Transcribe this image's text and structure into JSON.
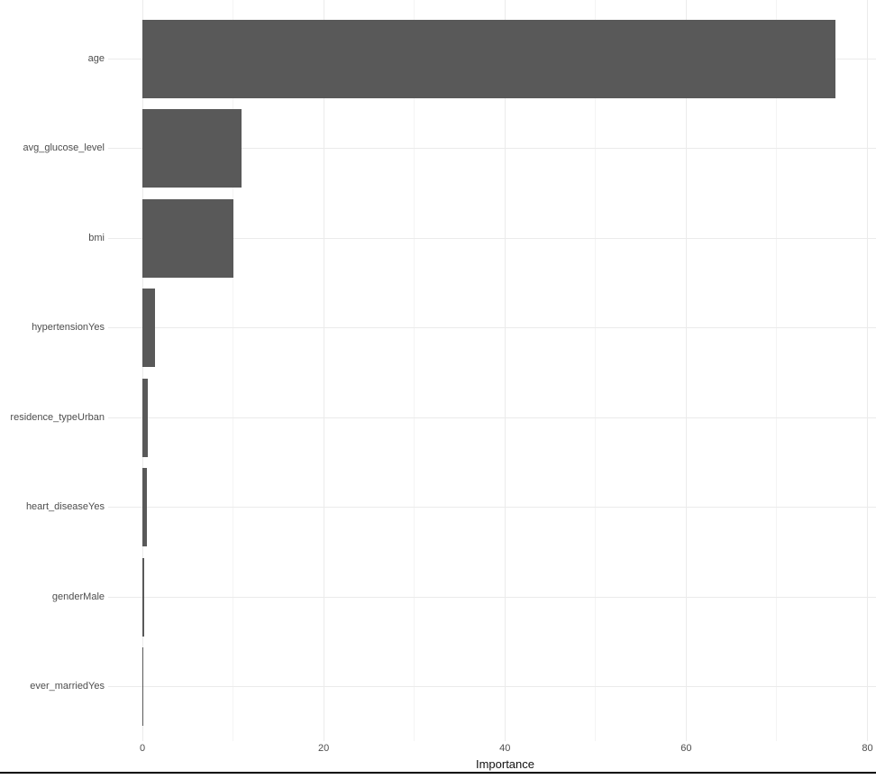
{
  "chart_data": {
    "type": "bar",
    "orientation": "horizontal",
    "title": "",
    "xlabel": "Importance",
    "ylabel": "",
    "categories": [
      "age",
      "avg_glucose_level",
      "bmi",
      "hypertensionYes",
      "residence_typeUrban",
      "heart_diseaseYes",
      "genderMale",
      "ever_marriedYes"
    ],
    "values": [
      76.5,
      10.9,
      10.0,
      1.4,
      0.6,
      0.45,
      0.15,
      0.12
    ],
    "x_ticks": [
      0,
      20,
      40,
      60,
      80
    ],
    "x_minor_ticks": [
      10,
      30,
      50,
      70
    ],
    "xlim": [
      0,
      81
    ],
    "grid": true,
    "legend": false,
    "colors": {
      "bar_fill": "#595959",
      "grid_major": "#ebebeb",
      "grid_minor": "#f4f4f4",
      "tick_label": "#4d4d4d",
      "axis_title": "#111111",
      "background": "#ffffff",
      "bottom_border": "#000000"
    }
  }
}
